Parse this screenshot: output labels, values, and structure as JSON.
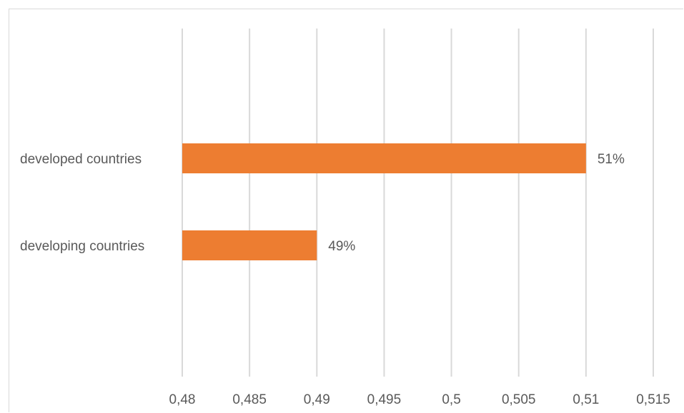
{
  "chart_data": {
    "type": "bar",
    "orientation": "horizontal",
    "categories": [
      "developed countries",
      "developing countries"
    ],
    "values": [
      0.51,
      0.49
    ],
    "data_labels": [
      "51%",
      "49%"
    ],
    "x_ticks": [
      "0,48",
      "0,485",
      "0,49",
      "0,495",
      "0,5",
      "0,505",
      "0,51",
      "0,515"
    ],
    "tick_values": [
      0.48,
      0.485,
      0.49,
      0.495,
      0.5,
      0.505,
      0.51,
      0.515
    ],
    "xlim": [
      0.48,
      0.515
    ],
    "title": "",
    "xlabel": "",
    "ylabel": "",
    "grid": "vertical",
    "legend": "none",
    "bar_color": "#ED7D31",
    "grid_color": "#D9D9D9"
  }
}
